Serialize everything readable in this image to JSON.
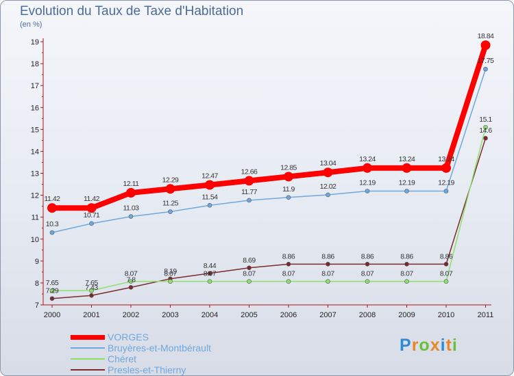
{
  "header": {
    "title": "Evolution du Taux de Taxe d'Habitation",
    "unit": "(en %)"
  },
  "logo": {
    "text": "Proxiti",
    "colors": [
      "#2c8bd6",
      "#e8872a",
      "#6bbf3a",
      "#e8872a",
      "#2c8bd6",
      "#e8872a",
      "#6bbf3a"
    ]
  },
  "chart_data": {
    "type": "line",
    "title": "Evolution du Taux de Taxe d'Habitation",
    "ylabel": "(en %)",
    "xlabel": "",
    "x": [
      "2000",
      "2001",
      "2002",
      "2003",
      "2004",
      "2005",
      "2006",
      "2007",
      "2008",
      "2009",
      "2010",
      "2011"
    ],
    "y_ticks": [
      "7",
      "8",
      "9",
      "10",
      "11",
      "12",
      "13",
      "14",
      "15",
      "16",
      "17",
      "18",
      "19"
    ],
    "ylim": [
      7,
      19
    ],
    "grid": false,
    "legend_position": "bottom-left",
    "series": [
      {
        "name": "VORGES",
        "color": "#ff0000",
        "values": [
          11.42,
          11.42,
          12.11,
          12.29,
          12.47,
          12.66,
          12.85,
          13.04,
          13.24,
          13.24,
          13.24,
          18.84
        ],
        "labels": [
          "11.42",
          "11.42",
          "12.11",
          "12.29",
          "12.47",
          "12.66",
          "12.85",
          "13.04",
          "13.24",
          "13.24",
          "13.24",
          "18.84"
        ]
      },
      {
        "name": "Bruyères-et-Montbérault",
        "color": "#6fa8dc",
        "values": [
          10.3,
          10.71,
          11.03,
          11.25,
          11.54,
          11.77,
          11.9,
          12.02,
          12.19,
          12.19,
          12.19,
          17.75
        ],
        "labels": [
          "10.3",
          "10.71",
          "11.03",
          "11.25",
          "11.54",
          "11.77",
          "11.9",
          "12.02",
          "12.19",
          "12.19",
          "12.19",
          "17.75"
        ]
      },
      {
        "name": "Chéret",
        "color": "#8ee06a",
        "values": [
          7.65,
          7.65,
          8.07,
          8.07,
          8.07,
          8.07,
          8.07,
          8.07,
          8.07,
          8.07,
          8.07,
          15.1
        ],
        "labels": [
          "7.65",
          "7.65",
          "8.07",
          "8.07",
          "8.07",
          "8.07",
          "8.07",
          "8.07",
          "8.07",
          "8.07",
          "8.07",
          "15.1"
        ]
      },
      {
        "name": "Presles-et-Thierny",
        "color": "#7a2a2a",
        "values": [
          7.29,
          7.43,
          7.8,
          8.19,
          8.44,
          8.69,
          8.86,
          8.86,
          8.86,
          8.86,
          8.86,
          14.6
        ],
        "labels": [
          "7.29",
          "7.43",
          "7.8",
          "8.19",
          "8.44",
          "8.69",
          "8.86",
          "8.86",
          "8.86",
          "8.86",
          "8.86",
          "14.6"
        ]
      }
    ]
  }
}
